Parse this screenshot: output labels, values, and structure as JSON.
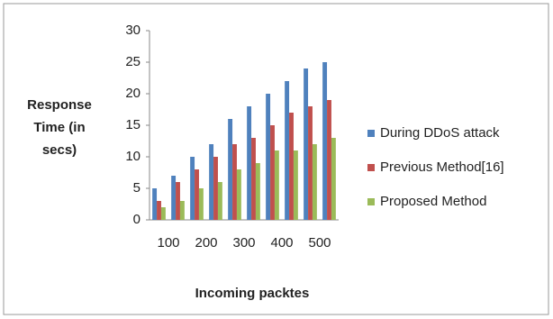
{
  "chart_data": {
    "type": "bar",
    "y_label": "Response Time (in secs)",
    "x_label": "Incoming packtes",
    "categories": [
      "100",
      null,
      "200",
      null,
      "300",
      null,
      "400",
      null,
      "500",
      null
    ],
    "series": [
      {
        "name": "During DDoS attack",
        "color": "#4f81bd",
        "values": [
          5,
          7,
          10,
          12,
          16,
          18,
          20,
          22,
          24,
          25
        ]
      },
      {
        "name": "Previous Method[16]",
        "color": "#c0504d",
        "values": [
          3,
          6,
          8,
          10,
          12,
          13,
          15,
          17,
          18,
          19
        ]
      },
      {
        "name": "Proposed Method",
        "color": "#9bbb59",
        "values": [
          2,
          3,
          5,
          6,
          8,
          9,
          11,
          11,
          12,
          13
        ]
      }
    ],
    "ylim": [
      0,
      30
    ],
    "yticks": [
      0,
      5,
      10,
      15,
      20,
      25,
      30
    ],
    "grid": false
  }
}
